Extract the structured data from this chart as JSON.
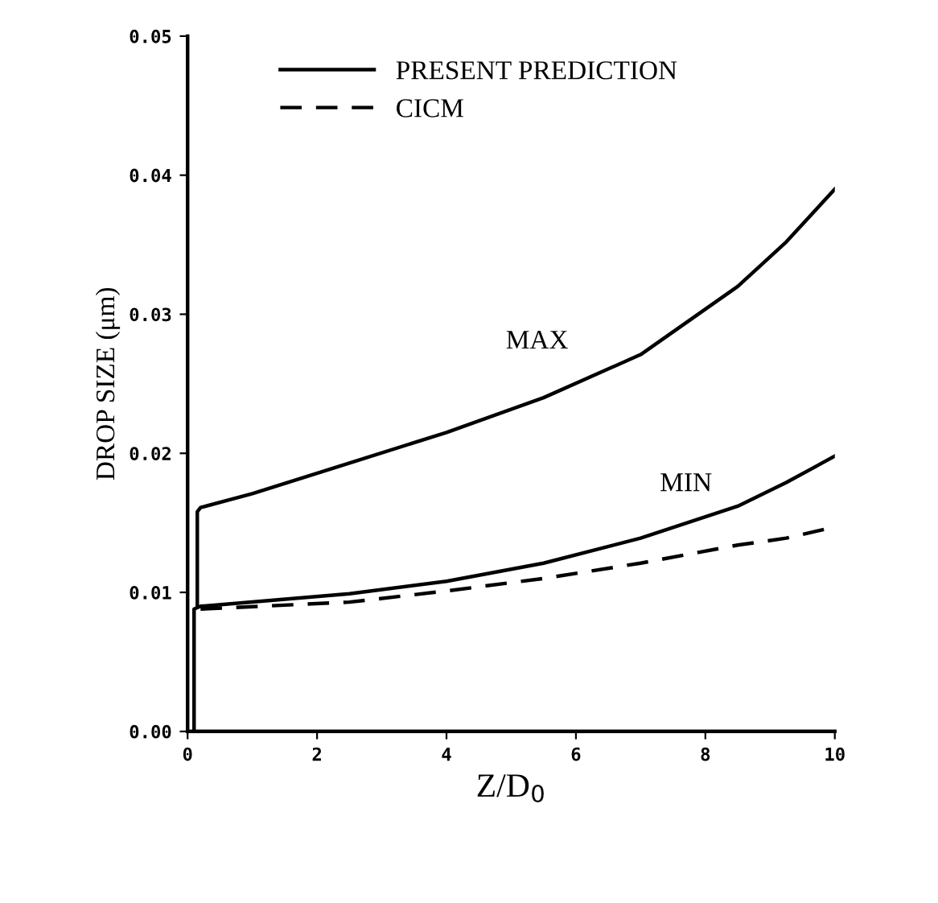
{
  "chart_data": {
    "type": "line",
    "xlabel": "Z/D$_{0}$",
    "ylabel": "DROP SIZE (μm)",
    "xlim": [
      0,
      10
    ],
    "ylim": [
      0,
      0.05
    ],
    "xticks": [
      0,
      2,
      4,
      6,
      8,
      10
    ],
    "yticks": [
      {
        "value": 0,
        "label": "0.00"
      },
      {
        "value": 0.01,
        "label": "0.01"
      },
      {
        "value": 0.02,
        "label": "0.02"
      },
      {
        "value": 0.03,
        "label": "0.03"
      },
      {
        "value": 0.04,
        "label": "0.04"
      },
      {
        "value": 0.05,
        "label": "0.05"
      }
    ],
    "grid": false,
    "legend": "top",
    "marker": "none",
    "series": [
      {
        "name": "PRESENT PREDICTION",
        "color": "#000000",
        "line_style": "solid",
        "x": [
          0.15,
          0.15,
          0.2,
          1,
          2.5,
          4,
          5.5,
          7,
          8.5,
          9.25,
          10
        ],
        "values": [
          0.009,
          0.0158,
          0.0161,
          0.0171,
          0.0193,
          0.0215,
          0.024,
          0.0271,
          0.032,
          0.0352,
          0.039
        ]
      },
      {
        "color": "#000000",
        "line_style": "solid",
        "x": [
          0.1,
          0.1,
          0.2,
          2.5,
          4,
          5.5,
          7,
          8.5,
          9.25,
          10
        ],
        "values": [
          0,
          0.0088,
          0.009,
          0.0099,
          0.0108,
          0.0121,
          0.0139,
          0.0162,
          0.0179,
          0.0198
        ]
      },
      {
        "name": "CICM",
        "color": "#000000",
        "line_style": "dashed",
        "x": [
          0.2,
          2.5,
          4,
          5.5,
          7,
          8.5,
          9.25,
          10
        ],
        "values": [
          0.0088,
          0.0093,
          0.0101,
          0.011,
          0.0121,
          0.0134,
          0.0139,
          0.0147
        ]
      }
    ],
    "annotations": [
      "MAX",
      "MIN"
    ]
  }
}
